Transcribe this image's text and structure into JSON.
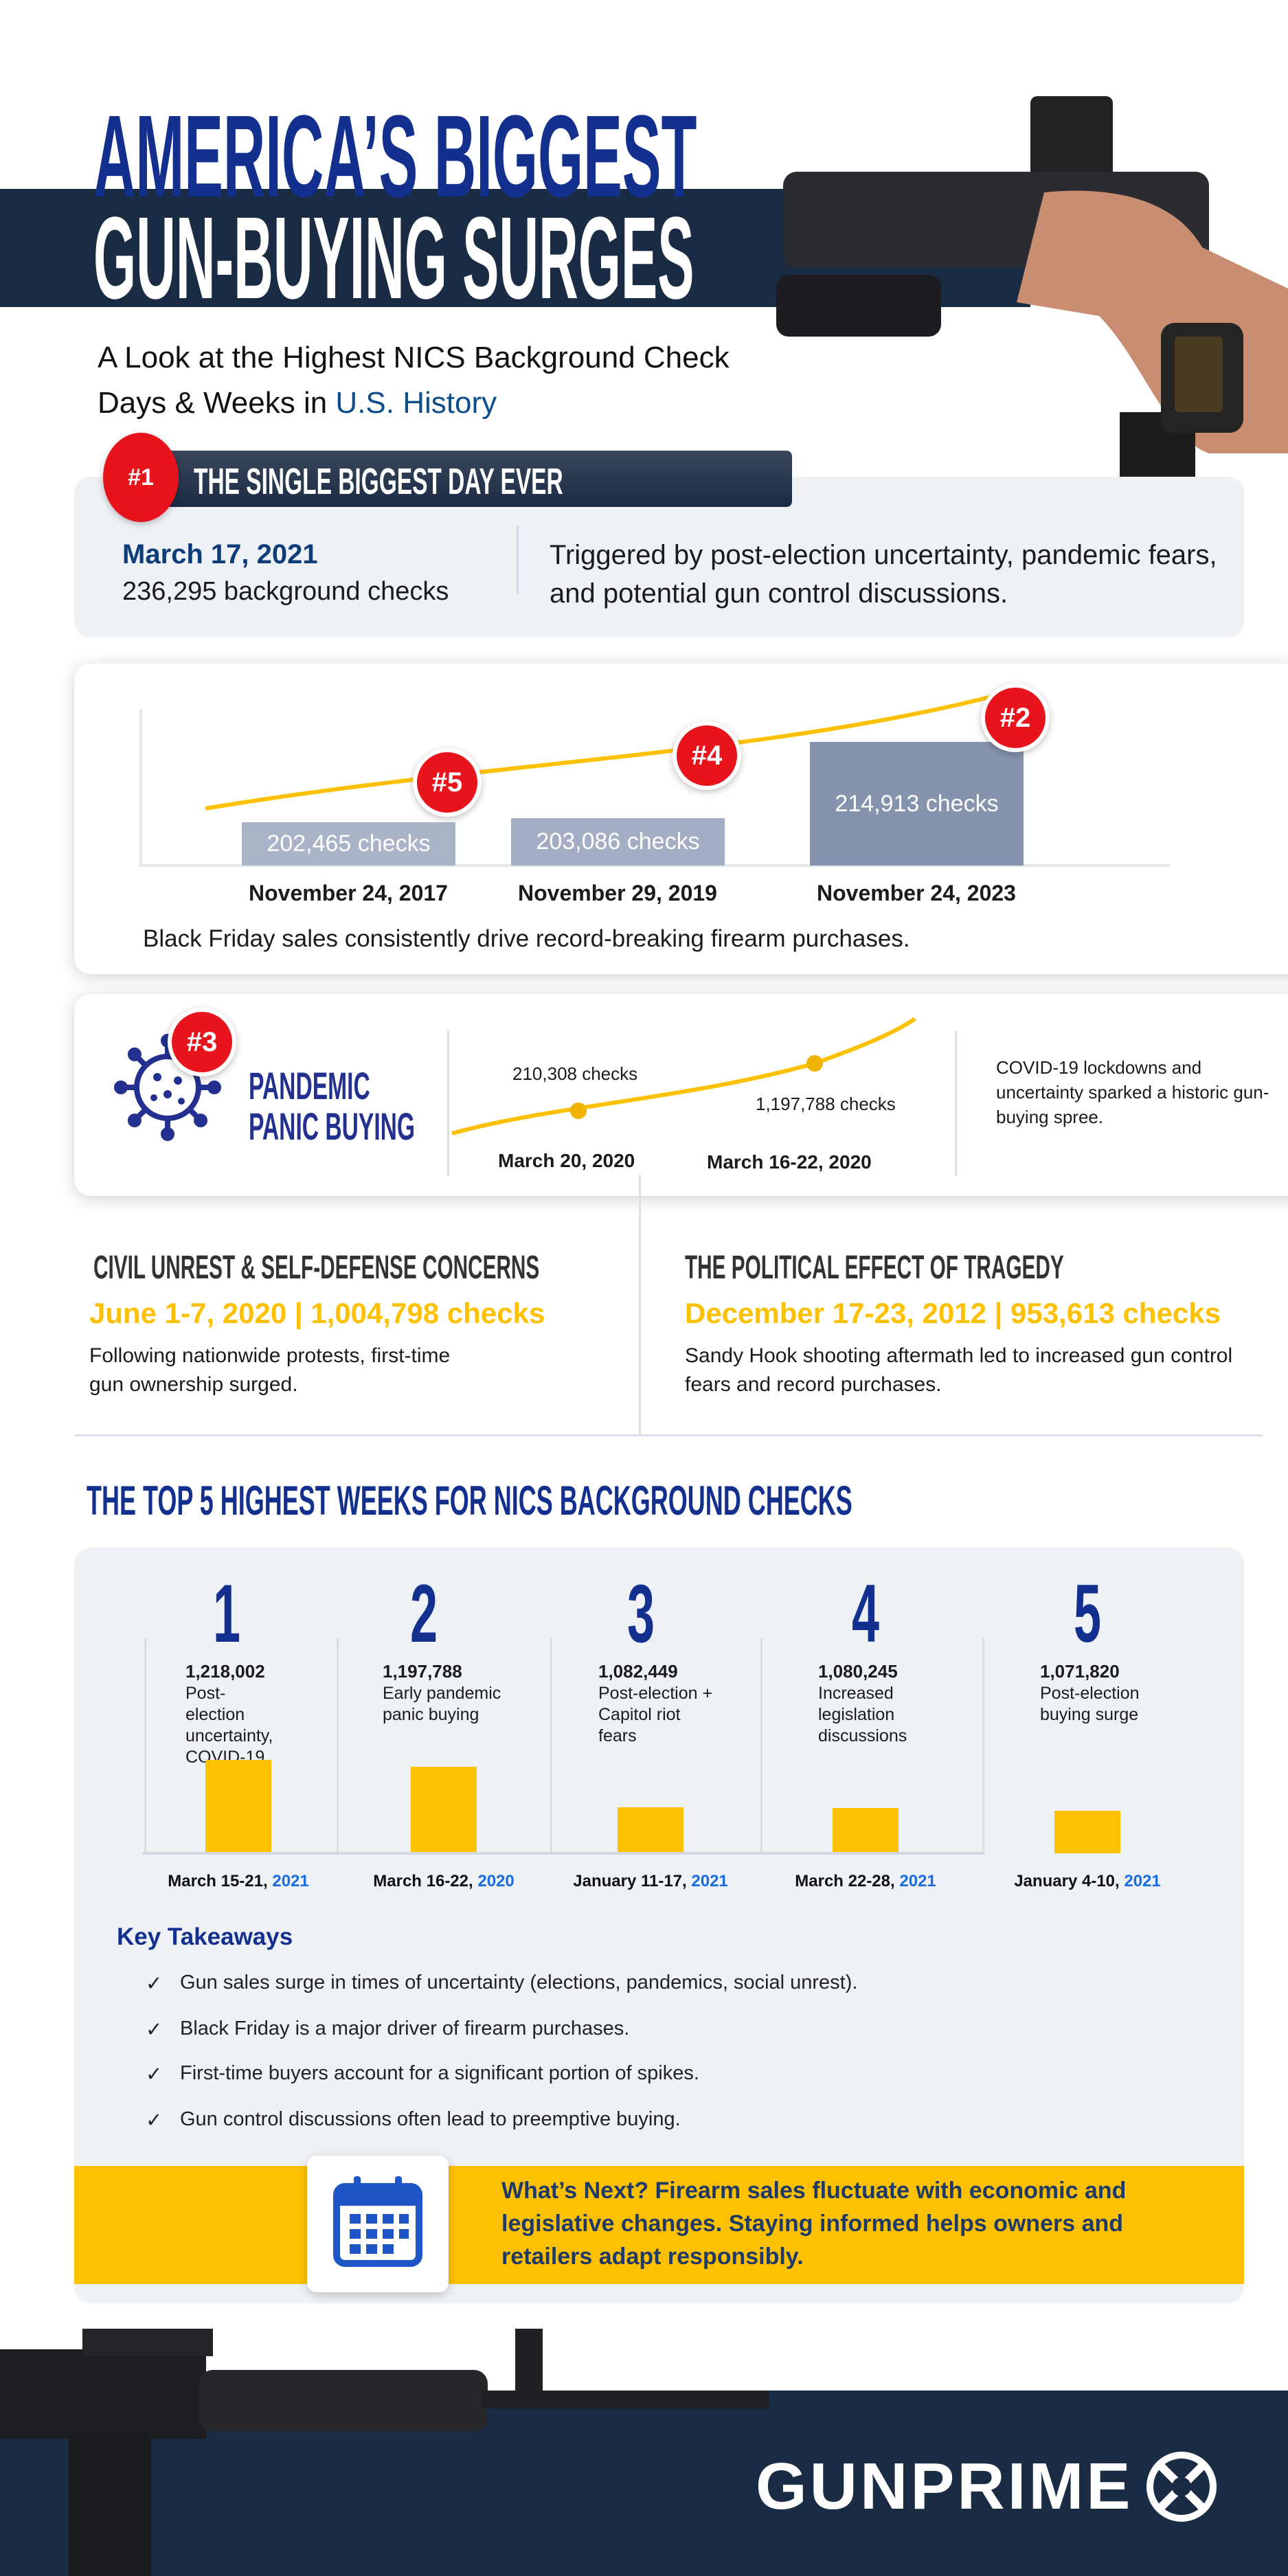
{
  "header": {
    "title_line1": "AMERICA’S BIGGEST",
    "title_line2": "GUN-BUYING SURGES",
    "subtitle_part1": "A Look at the Highest NICS Background Check",
    "subtitle_part2": "Days & Weeks in ",
    "subtitle_highlight": "U.S. History"
  },
  "biggest_day": {
    "rank": "#1",
    "heading": "THE SINGLE BIGGEST DAY EVER",
    "date": "March 17, 2021",
    "checks": "236,295 background checks",
    "description": "Triggered by post-election uncertainty, pandemic fears, and potential gun control discussions."
  },
  "black_friday": {
    "bars": [
      {
        "rank": "#5",
        "label": "202,465  checks",
        "date": "November 24, 2017",
        "value": 202465
      },
      {
        "rank": "#4",
        "label": "203,086 checks",
        "date": "November 29, 2019",
        "value": 203086
      },
      {
        "rank": "#2",
        "label": "214,913 checks",
        "date": "November 24, 2023",
        "value": 214913
      }
    ],
    "caption": "Black Friday sales consistently drive record-breaking firearm purchases."
  },
  "pandemic": {
    "rank": "#3",
    "title_line1": "PANDEMIC",
    "title_line2": "PANIC BUYING",
    "points": [
      {
        "label": "210,308 checks",
        "date": "March 20, 2020"
      },
      {
        "label": "1,197,788 checks",
        "date": "March 16-22, 2020"
      }
    ],
    "description": "COVID-19 lockdowns and uncertainty sparked a historic gun-buying spree."
  },
  "civil_unrest": {
    "heading": "CIVIL UNREST & SELF-DEFENSE CONCERNS",
    "stat": "June 1-7, 2020 | 1,004,798 checks",
    "description": "Following nationwide protests, first-time gun ownership surged."
  },
  "tragedy": {
    "heading": "THE POLITICAL EFFECT OF TRAGEDY",
    "stat": "December 17-23, 2012 | 953,613 checks",
    "description": "Sandy Hook shooting aftermath led to increased gun control fears and record purchases."
  },
  "top5": {
    "heading": "THE TOP 5 HIGHEST WEEKS FOR NICS BACKGROUND CHECKS",
    "weeks": [
      {
        "rank": "1",
        "value": "1,218,002",
        "reason": "Post-election uncertainty, COVID-19",
        "date": "March 15-21, ",
        "year": "2021"
      },
      {
        "rank": "2",
        "value": "1,197,788",
        "reason": "Early pandemic panic buying",
        "date": "March 16-22, ",
        "year": "2020"
      },
      {
        "rank": "3",
        "value": "1,082,449",
        "reason": "Post-election + Capitol riot fears",
        "date": "January 11-17, ",
        "year": "2021"
      },
      {
        "rank": "4",
        "value": "1,080,245",
        "reason": "Increased legislation discussions",
        "date": "March 22-28, ",
        "year": "2021"
      },
      {
        "rank": "5",
        "value": "1,071,820",
        "reason": "Post-election buying surge",
        "date": "January 4-10, ",
        "year": "2021"
      }
    ]
  },
  "takeaways": {
    "heading": "Key Takeaways",
    "check": "✓",
    "items": [
      "Gun sales surge in times of uncertainty (elections, pandemics, social unrest).",
      "Black Friday is a major driver of firearm purchases.",
      "First-time buyers account for a significant portion of spikes.",
      "Gun control discussions often lead to preemptive buying."
    ]
  },
  "whats_next": {
    "text": "What’s Next? Firearm sales fluctuate with economic and legislative changes. Staying informed helps owners and retailers adapt responsibly."
  },
  "footer": {
    "logo_text": "GUNPRIME"
  },
  "colors": {
    "navy": "#1a2b44",
    "title_blue": "#14308f",
    "red": "#e8141c",
    "yellow": "#fdc101",
    "card": "#eef1f6",
    "link_blue": "#1a6de0"
  }
}
